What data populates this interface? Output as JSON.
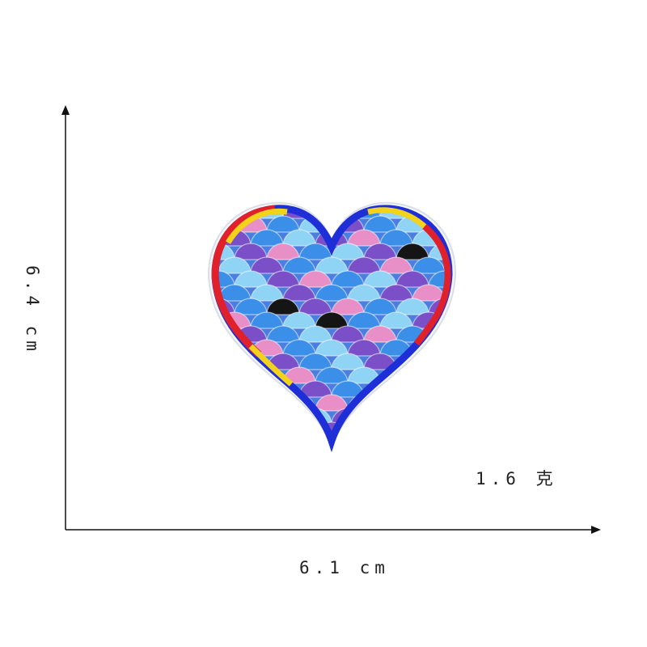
{
  "product_photo": {
    "subject": "heart-shaped glitter mermaid-scale embroidered patch",
    "colors": {
      "background": "#ffffff",
      "axis": "#111111",
      "border_red": "#e0202a",
      "border_yellow": "#f2d21a",
      "border_blue": "#1f2fd8",
      "scale_blue": "#3b8fe8",
      "scale_sky": "#8fd3f5",
      "scale_violet": "#7a4fc8",
      "scale_pink": "#e88fc8",
      "scale_black": "#151515"
    }
  },
  "dimensions": {
    "height_label": "6.4 cm",
    "width_label": "6.1 cm",
    "weight_label": "1.6 克"
  }
}
